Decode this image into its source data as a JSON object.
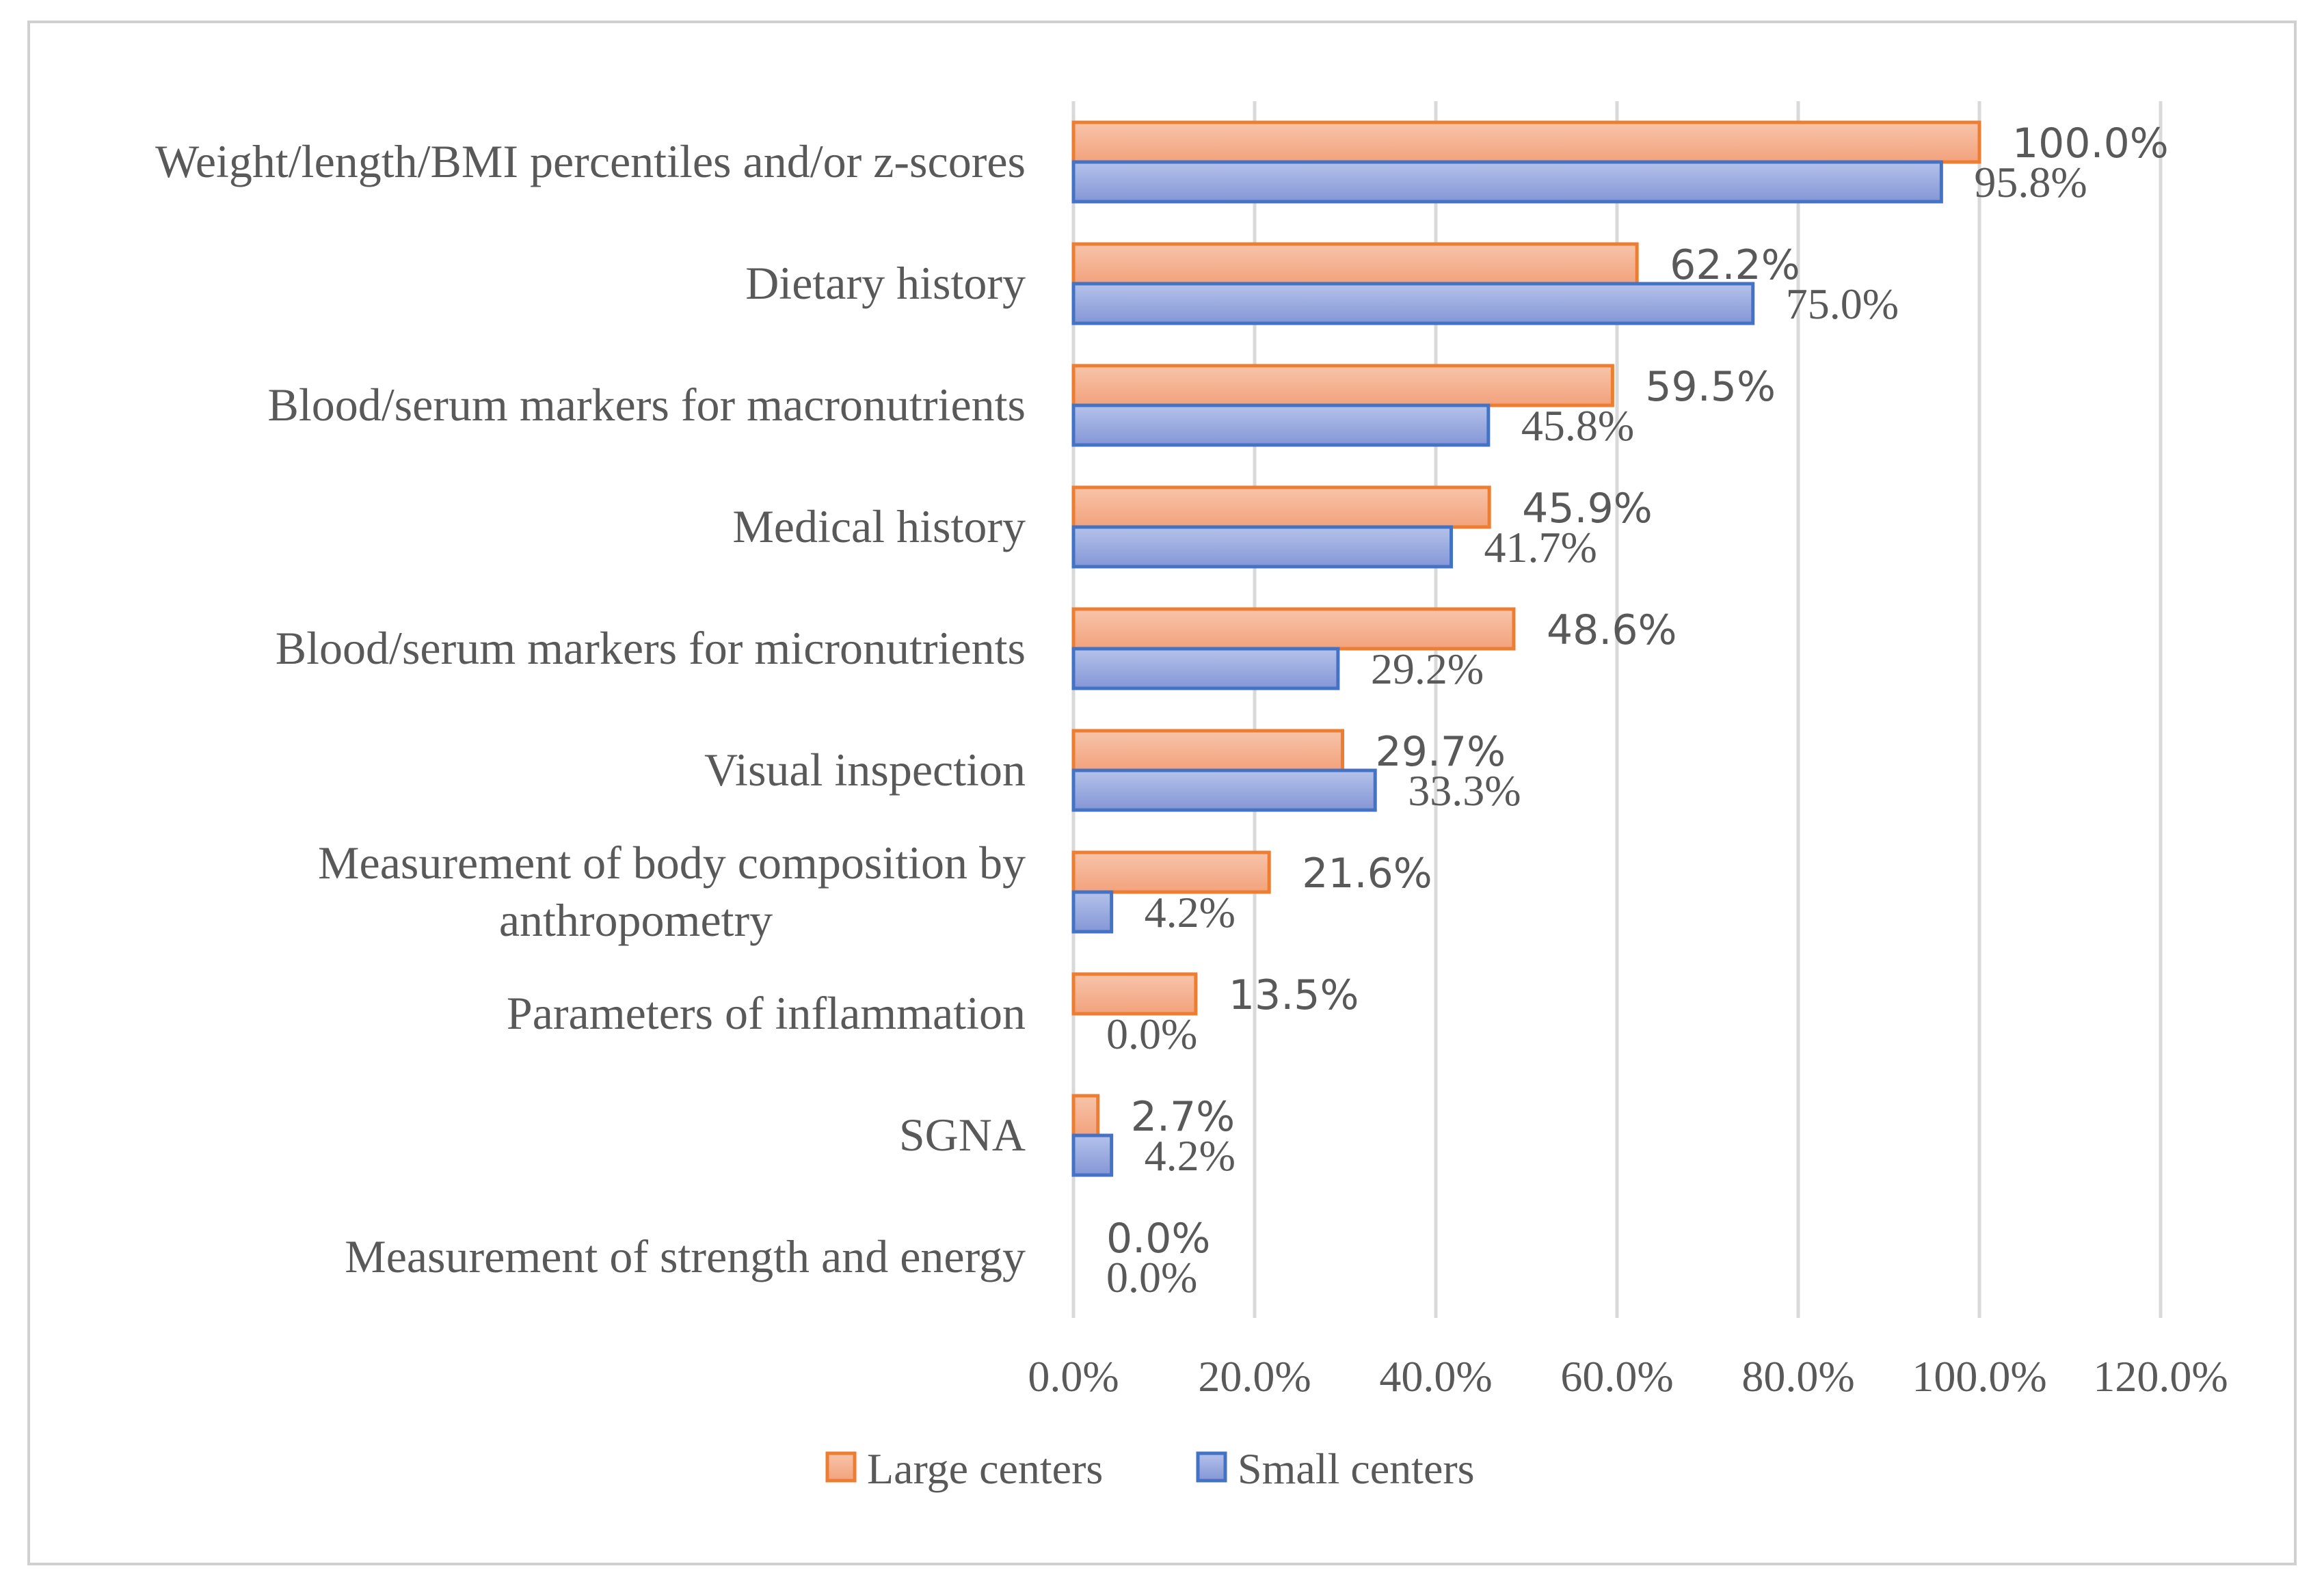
{
  "chart_data": {
    "type": "bar",
    "orientation": "horizontal",
    "title": "",
    "xlabel": "",
    "ylabel": "",
    "xlim": [
      0,
      120
    ],
    "xticks": [
      0,
      20,
      40,
      60,
      80,
      100,
      120
    ],
    "xtick_labels": [
      "0.0%",
      "20.0%",
      "40.0%",
      "60.0%",
      "80.0%",
      "100.0%",
      "120.0%"
    ],
    "grid": "vertical",
    "legend_position": "bottom-center",
    "categories": [
      [
        "Weight/length/BMI percentiles and/or z-scores"
      ],
      [
        "Dietary history"
      ],
      [
        "Blood/serum markers for macronutrients"
      ],
      [
        "Medical history"
      ],
      [
        "Blood/serum markers for micronutrients"
      ],
      [
        "Visual inspection"
      ],
      [
        "Measurement of body composition by",
        "anthropometry"
      ],
      [
        "Parameters of inflammation"
      ],
      [
        "SGNA"
      ],
      [
        "Measurement of strength and energy"
      ]
    ],
    "series": [
      {
        "name": "Large centers",
        "color_fill": "#f4b08f",
        "color_border": "#ed7d31",
        "values": [
          100.0,
          62.2,
          59.5,
          45.9,
          48.6,
          29.7,
          21.6,
          13.5,
          2.7,
          0.0
        ],
        "labels": [
          "100.0%",
          "62.2%",
          "59.5%",
          "45.9%",
          "48.6%",
          "29.7%",
          "21.6%",
          "13.5%",
          "2.7%",
          "0.0%"
        ]
      },
      {
        "name": "Small centers",
        "color_fill": "#9aabdf",
        "color_border": "#4472c4",
        "values": [
          95.8,
          75.0,
          45.8,
          41.7,
          29.2,
          33.3,
          4.2,
          0.0,
          4.2,
          0.0
        ],
        "labels": [
          "95.8%",
          "75.0%",
          "45.8%",
          "41.7%",
          "29.2%",
          "33.3%",
          "4.2%",
          "0.0%",
          "4.2%",
          "0.0%"
        ]
      }
    ]
  }
}
